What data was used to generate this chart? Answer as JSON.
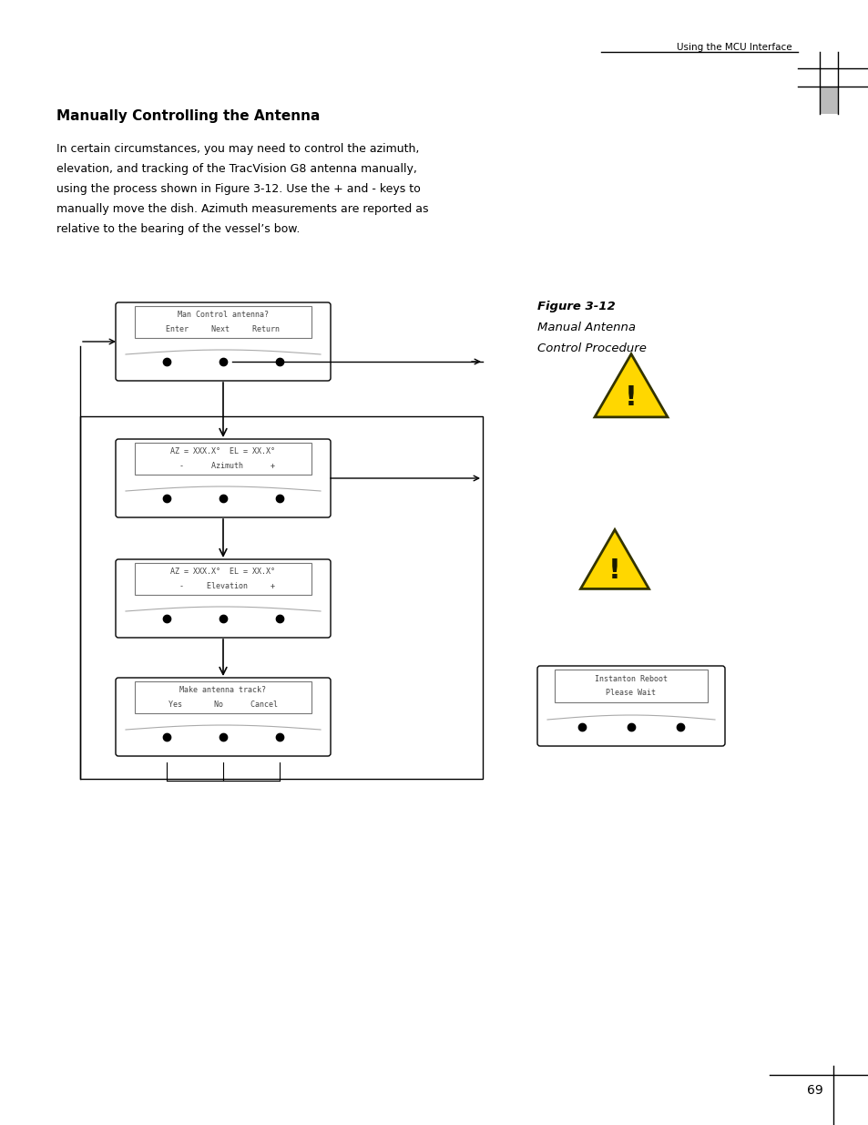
{
  "title": "Manually Controlling the Antenna",
  "header_text": "Using the MCU Interface",
  "body_text": "In certain circumstances, you may need to control the azimuth,\nelevation, and tracking of the TracVision G8 antenna manually,\nusing the process shown in Figure 3-12. Use the + and - keys to\nmanually move the dish. Azimuth measurements are reported as\nrelative to the bearing of the vessel’s bow.",
  "figure_label": "Figure 3-12",
  "figure_caption1": "Manual Antenna",
  "figure_caption2": "Control Procedure",
  "box1_line1": "Man Control antenna?",
  "box1_line2": "Enter     Next     Return",
  "box2_line1": "AZ = XXX.X°  EL = XX.X°",
  "box2_line2": "  -      Azimuth      +",
  "box3_line1": "AZ = XXX.X°  EL = XX.X°",
  "box3_line2": "  -     Elevation     +",
  "box4_line1": "Make antenna track?",
  "box4_line2": "Yes       No      Cancel",
  "reboot_line1": "Instanton Reboot",
  "reboot_line2": "Please Wait",
  "page_number": "69",
  "bg_color": "#ffffff",
  "warning_color": "#FFD700",
  "warning_edge": "#333300"
}
